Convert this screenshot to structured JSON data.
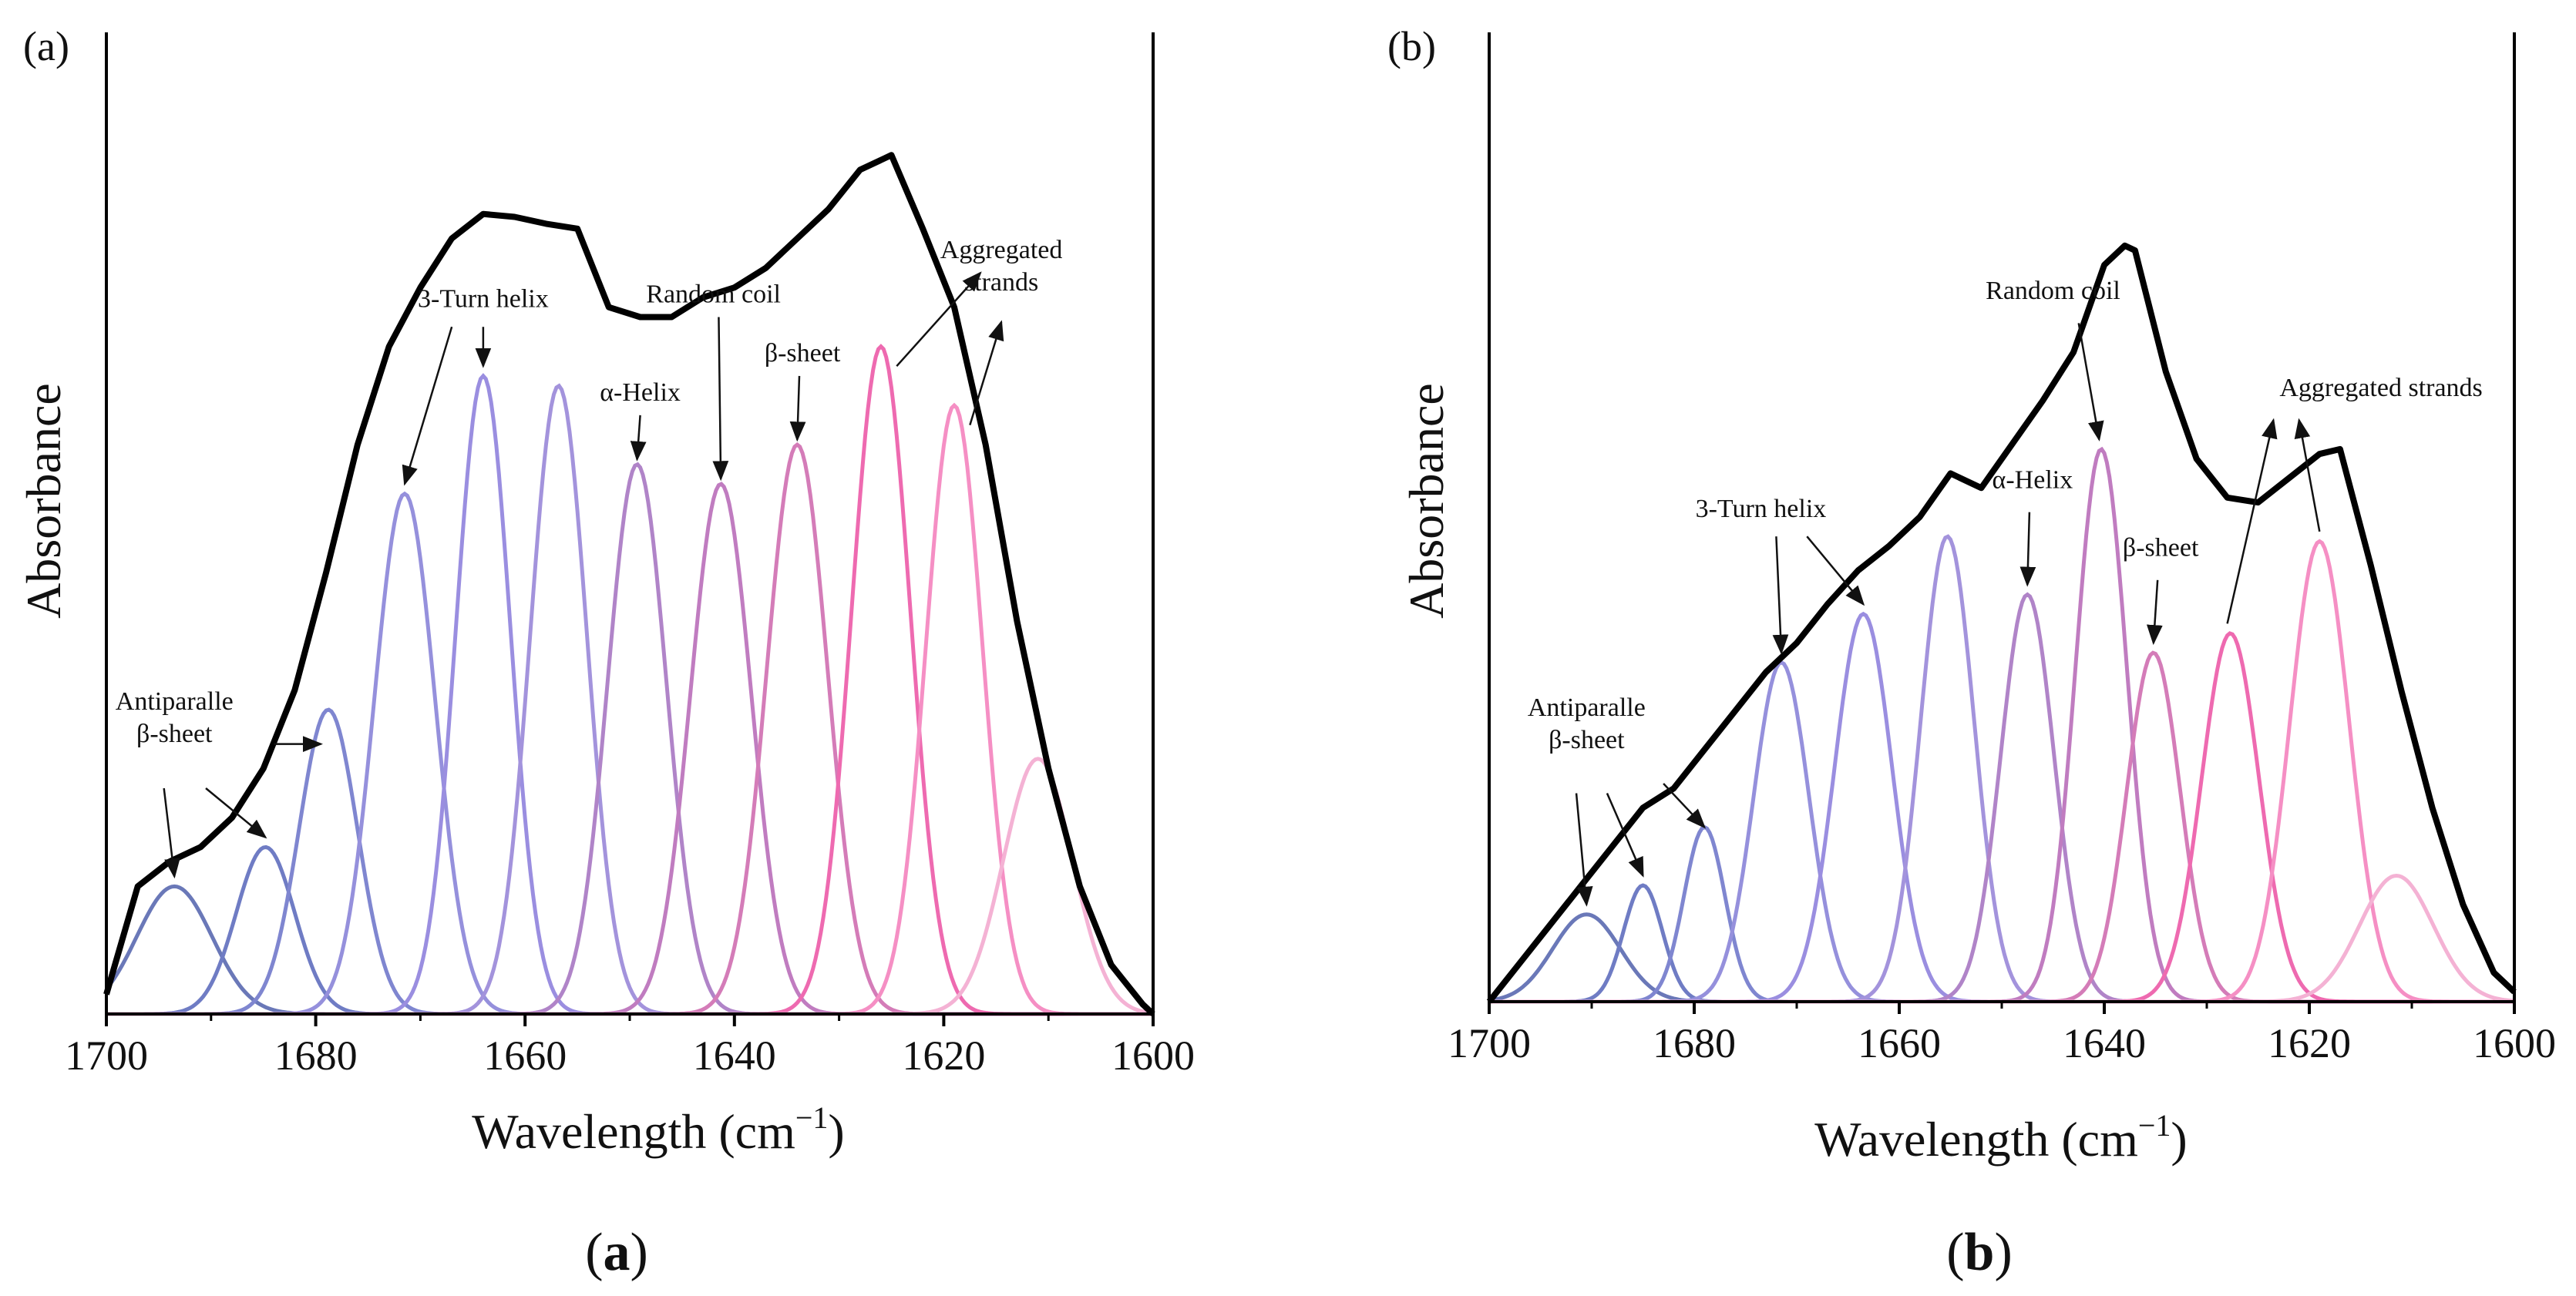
{
  "panels": [
    {
      "tag": "(a)",
      "caption": {
        "open": "(",
        "letter": "a",
        "close": ")"
      },
      "chart_data": {
        "type": "line",
        "xlabel": "Wavelength (cm",
        "xlabel_sup": "−1",
        "xlabel_close": ")",
        "ylabel": "Absorbance",
        "xlim": [
          1700,
          1600
        ],
        "ylim": [
          0,
          1.0
        ],
        "xticks": [
          1700,
          1680,
          1660,
          1640,
          1620,
          1600
        ],
        "xtick_labels": [
          "1700",
          "1680",
          "1660",
          "1640",
          "1620",
          "1600"
        ],
        "total": {
          "x": [
            1700,
            1697,
            1694,
            1691,
            1688,
            1685,
            1682,
            1679,
            1676,
            1673,
            1670,
            1667,
            1664,
            1661,
            1658,
            1655,
            1652,
            1649,
            1646,
            1643,
            1640,
            1637,
            1634,
            1631,
            1628,
            1625,
            1622,
            1619,
            1616,
            1613,
            1610,
            1607,
            1604,
            1601,
            1600
          ],
          "y": [
            0.02,
            0.13,
            0.155,
            0.17,
            0.2,
            0.25,
            0.33,
            0.45,
            0.58,
            0.68,
            0.74,
            0.79,
            0.815,
            0.812,
            0.805,
            0.8,
            0.72,
            0.71,
            0.71,
            0.73,
            0.74,
            0.76,
            0.79,
            0.82,
            0.86,
            0.875,
            0.8,
            0.72,
            0.58,
            0.4,
            0.25,
            0.13,
            0.05,
            0.01,
            0.0
          ]
        },
        "components": [
          {
            "center": 1693.5,
            "height": 0.13,
            "sigma": 3.6,
            "color": "#6a78b8"
          },
          {
            "center": 1684.8,
            "height": 0.17,
            "sigma": 2.8,
            "color": "#6f7cc4"
          },
          {
            "center": 1678.8,
            "height": 0.31,
            "sigma": 2.8,
            "color": "#7f86d0"
          },
          {
            "center": 1671.5,
            "height": 0.53,
            "sigma": 2.9,
            "color": "#9590dc"
          },
          {
            "center": 1664.0,
            "height": 0.65,
            "sigma": 2.6,
            "color": "#9a8ee0"
          },
          {
            "center": 1656.8,
            "height": 0.64,
            "sigma": 2.7,
            "color": "#a393dc"
          },
          {
            "center": 1649.3,
            "height": 0.56,
            "sigma": 2.8,
            "color": "#b084c8"
          },
          {
            "center": 1641.3,
            "height": 0.54,
            "sigma": 2.9,
            "color": "#c07cc0"
          },
          {
            "center": 1634.0,
            "height": 0.58,
            "sigma": 2.9,
            "color": "#d47cb8"
          },
          {
            "center": 1626.0,
            "height": 0.68,
            "sigma": 2.8,
            "color": "#ee6ab0"
          },
          {
            "center": 1619.0,
            "height": 0.62,
            "sigma": 2.7,
            "color": "#f58fc4"
          },
          {
            "center": 1611.0,
            "height": 0.26,
            "sigma": 3.3,
            "color": "#f4b2d4"
          }
        ],
        "annotations": [
          {
            "lines": [
              "Antiparalle",
              "β-sheet"
            ],
            "text_at": [
              1693.5,
              0.31
            ],
            "anchor": "middle",
            "arrows": [
              {
                "from": [
                  1694.5,
                  0.23
                ],
                "to": [
                  1693.5,
                  0.14
                ]
              },
              {
                "from": [
                  1690.5,
                  0.23
                ],
                "to": [
                  1684.8,
                  0.18
                ]
              },
              {
                "from": [
                  1684.0,
                  0.275
                ],
                "to": [
                  1679.5,
                  0.275
                ]
              }
            ]
          },
          {
            "lines": [
              "3-Turn helix"
            ],
            "text_at": [
              1664.0,
              0.72
            ],
            "anchor": "middle",
            "arrows": [
              {
                "from": [
                  1664.0,
                  0.7
                ],
                "to": [
                  1664.0,
                  0.66
                ]
              },
              {
                "from": [
                  1667.0,
                  0.7
                ],
                "to": [
                  1671.5,
                  0.54
                ]
              }
            ]
          },
          {
            "lines": [
              "α-Helix"
            ],
            "text_at": [
              1649.0,
              0.625
            ],
            "anchor": "middle",
            "arrows": [
              {
                "from": [
                  1649.0,
                  0.61
                ],
                "to": [
                  1649.3,
                  0.565
                ]
              }
            ]
          },
          {
            "lines": [
              "Random coil"
            ],
            "text_at": [
              1642.0,
              0.725
            ],
            "anchor": "middle",
            "arrows": [
              {
                "from": [
                  1641.5,
                  0.71
                ],
                "to": [
                  1641.3,
                  0.545
                ]
              }
            ]
          },
          {
            "lines": [
              "β-sheet"
            ],
            "text_at": [
              1633.5,
              0.665
            ],
            "anchor": "middle",
            "arrows": [
              {
                "from": [
                  1633.8,
                  0.65
                ],
                "to": [
                  1634.0,
                  0.585
                ]
              }
            ]
          },
          {
            "lines": [
              "Aggregated",
              "strands"
            ],
            "text_at": [
              1614.5,
              0.77
            ],
            "anchor": "middle",
            "arrows": [
              {
                "from": [
                  1624.5,
                  0.66
                ],
                "to": [
                  1616.5,
                  0.755
                ]
              },
              {
                "from": [
                  1617.5,
                  0.6
                ],
                "to": [
                  1614.5,
                  0.705
                ]
              }
            ]
          }
        ]
      }
    },
    {
      "tag": "(b)",
      "caption": {
        "open": "(",
        "letter": "b",
        "close": ")"
      },
      "chart_data": {
        "type": "line",
        "xlabel": "Wavelength (cm",
        "xlabel_sup": "−1",
        "xlabel_close": ")",
        "ylabel": "Absorbance",
        "xlim": [
          1700,
          1600
        ],
        "ylim": [
          0,
          1.0
        ],
        "xticks": [
          1700,
          1680,
          1660,
          1640,
          1620,
          1600
        ],
        "xtick_labels": [
          "1700",
          "1680",
          "1660",
          "1640",
          "1620",
          "1600"
        ],
        "total": {
          "x": [
            1700,
            1697,
            1694,
            1691,
            1688,
            1685,
            1682,
            1679,
            1676,
            1673,
            1670,
            1667,
            1664,
            1661,
            1658,
            1655,
            1652,
            1649,
            1646,
            1643,
            1640,
            1638,
            1637,
            1634,
            1631,
            1628,
            1625,
            1622,
            1619,
            1617,
            1614,
            1611,
            1608,
            1605,
            1602,
            1600
          ],
          "y": [
            0.0,
            0.04,
            0.08,
            0.12,
            0.16,
            0.2,
            0.22,
            0.26,
            0.3,
            0.34,
            0.37,
            0.41,
            0.445,
            0.47,
            0.5,
            0.545,
            0.53,
            0.575,
            0.62,
            0.67,
            0.76,
            0.78,
            0.775,
            0.65,
            0.56,
            0.52,
            0.515,
            0.54,
            0.565,
            0.57,
            0.45,
            0.32,
            0.2,
            0.1,
            0.03,
            0.01
          ]
        },
        "components": [
          {
            "center": 1690.5,
            "height": 0.09,
            "sigma": 3.3,
            "color": "#6a78b8"
          },
          {
            "center": 1685.0,
            "height": 0.12,
            "sigma": 1.9,
            "color": "#6f7cc4"
          },
          {
            "center": 1679.0,
            "height": 0.18,
            "sigma": 2.0,
            "color": "#7f86d0"
          },
          {
            "center": 1671.5,
            "height": 0.35,
            "sigma": 2.7,
            "color": "#9590dc"
          },
          {
            "center": 1663.5,
            "height": 0.4,
            "sigma": 2.8,
            "color": "#9a8ee0"
          },
          {
            "center": 1655.3,
            "height": 0.48,
            "sigma": 2.6,
            "color": "#a393dc"
          },
          {
            "center": 1647.5,
            "height": 0.42,
            "sigma": 2.6,
            "color": "#b084c8"
          },
          {
            "center": 1640.3,
            "height": 0.57,
            "sigma": 2.5,
            "color": "#c07cc0"
          },
          {
            "center": 1635.2,
            "height": 0.36,
            "sigma": 2.6,
            "color": "#d47cb8"
          },
          {
            "center": 1627.7,
            "height": 0.38,
            "sigma": 2.8,
            "color": "#ee6ab0"
          },
          {
            "center": 1619.0,
            "height": 0.475,
            "sigma": 2.9,
            "color": "#f58fc4"
          },
          {
            "center": 1611.5,
            "height": 0.13,
            "sigma": 3.6,
            "color": "#f4b2d4"
          }
        ],
        "annotations": [
          {
            "lines": [
              "Antiparalle",
              "β-sheet"
            ],
            "text_at": [
              1690.5,
              0.295
            ],
            "anchor": "middle",
            "arrows": [
              {
                "from": [
                  1691.5,
                  0.215
                ],
                "to": [
                  1690.5,
                  0.1
                ]
              },
              {
                "from": [
                  1688.5,
                  0.215
                ],
                "to": [
                  1685.0,
                  0.13
                ]
              },
              {
                "from": [
                  1683.0,
                  0.225
                ],
                "to": [
                  1679.0,
                  0.18
                ]
              }
            ]
          },
          {
            "lines": [
              "3-Turn helix"
            ],
            "text_at": [
              1673.5,
              0.5
            ],
            "anchor": "middle",
            "arrows": [
              {
                "from": [
                  1672.0,
                  0.48
                ],
                "to": [
                  1671.5,
                  0.36
                ]
              },
              {
                "from": [
                  1669.0,
                  0.48
                ],
                "to": [
                  1663.5,
                  0.41
                ]
              }
            ]
          },
          {
            "lines": [
              "α-Helix"
            ],
            "text_at": [
              1647.0,
              0.53
            ],
            "anchor": "middle",
            "arrows": [
              {
                "from": [
                  1647.3,
                  0.505
                ],
                "to": [
                  1647.5,
                  0.43
                ]
              }
            ]
          },
          {
            "lines": [
              "Random coil"
            ],
            "text_at": [
              1645.0,
              0.725
            ],
            "anchor": "middle",
            "arrows": [
              {
                "from": [
                  1642.5,
                  0.7
                ],
                "to": [
                  1640.5,
                  0.58
                ]
              }
            ]
          },
          {
            "lines": [
              "β-sheet"
            ],
            "text_at": [
              1634.5,
              0.46
            ],
            "anchor": "middle",
            "arrows": [
              {
                "from": [
                  1634.8,
                  0.435
                ],
                "to": [
                  1635.2,
                  0.37
                ]
              }
            ]
          },
          {
            "lines": [
              "Aggregated strands"
            ],
            "text_at": [
              1613.0,
              0.625
            ],
            "anchor": "middle",
            "arrows": [
              {
                "from": [
                  1628.0,
                  0.39
                ],
                "to": [
                  1623.5,
                  0.6
                ]
              },
              {
                "from": [
                  1619.0,
                  0.485
                ],
                "to": [
                  1621.0,
                  0.6
                ]
              }
            ]
          }
        ]
      }
    }
  ]
}
